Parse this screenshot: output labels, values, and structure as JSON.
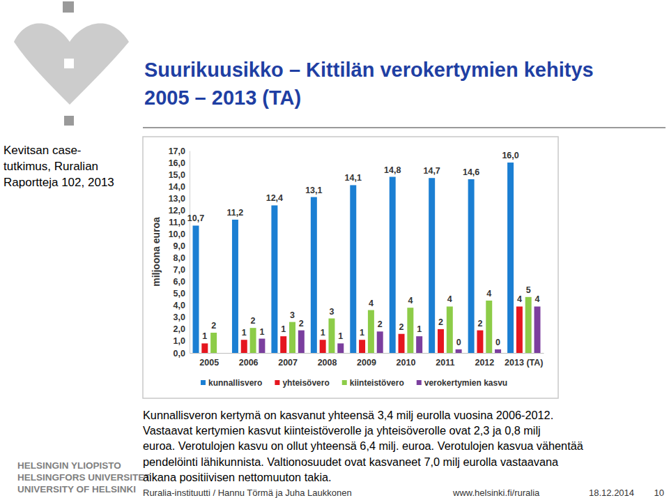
{
  "chart_data": {
    "type": "bar",
    "ylabel": "miljoona euroa",
    "categories": [
      "2005",
      "2006",
      "2007",
      "2008",
      "2009",
      "2010",
      "2011",
      "2012",
      "2013 (TA)"
    ],
    "series": [
      {
        "name": "kunnallisvero",
        "color": "#1b7fd3",
        "values": [
          10.7,
          11.2,
          12.4,
          13.1,
          14.1,
          14.8,
          14.7,
          14.6,
          16.0
        ],
        "value_labels": [
          "10,7",
          "11,2",
          "12,4",
          "13,1",
          "14,1",
          "14,8",
          "14,7",
          "14,6",
          "16,0"
        ]
      },
      {
        "name": "yhteisövero",
        "color": "#e5161f",
        "values": [
          0.8,
          1.1,
          1.4,
          1.1,
          1.1,
          1.6,
          2.0,
          1.9,
          3.9
        ],
        "value_labels": [
          "1",
          "1",
          "1",
          "1",
          "1",
          "2",
          "2",
          "2",
          "4"
        ]
      },
      {
        "name": "kiinteistövero",
        "color": "#8dcc48",
        "values": [
          1.7,
          2.1,
          2.6,
          2.9,
          3.6,
          3.8,
          3.9,
          4.4,
          4.7
        ],
        "value_labels": [
          "2",
          "2",
          "3",
          "3",
          "4",
          "4",
          "4",
          "4",
          "5"
        ]
      },
      {
        "name": "verokertymien kasvu",
        "color": "#7b3f9e",
        "values": [
          null,
          1.2,
          1.9,
          0.8,
          1.8,
          1.4,
          0.3,
          0.3,
          3.9
        ],
        "value_labels": [
          null,
          "1",
          "2",
          "1",
          "2",
          "1",
          "0",
          "0",
          "4"
        ]
      }
    ],
    "ylim": [
      0,
      17
    ],
    "yticks": [
      {
        "value": 0,
        "label": "0,0"
      },
      {
        "value": 1,
        "label": "1,0"
      },
      {
        "value": 2,
        "label": "2,0"
      },
      {
        "value": 3,
        "label": "3,0"
      },
      {
        "value": 4,
        "label": "4,0"
      },
      {
        "value": 5,
        "label": "5,0"
      },
      {
        "value": 6,
        "label": "6,0"
      },
      {
        "value": 7,
        "label": "7,0"
      },
      {
        "value": 8,
        "label": "8,0"
      },
      {
        "value": 9,
        "label": "9,0"
      },
      {
        "value": 10,
        "label": "10,0"
      },
      {
        "value": 11,
        "label": "11,0"
      },
      {
        "value": 12,
        "label": "12,0"
      },
      {
        "value": 13,
        "label": "13,0"
      },
      {
        "value": 14,
        "label": "14,0"
      },
      {
        "value": 15,
        "label": "15,0"
      },
      {
        "value": 16,
        "label": "16,0"
      },
      {
        "value": 17,
        "label": "17,0"
      }
    ],
    "grid": false,
    "legend": "bottom",
    "data_labels": true
  },
  "slide": {
    "title_lines": [
      "Suurikuusikko – Kittilän verokertymien kehitys",
      "2005 – 2013 (TA)"
    ],
    "side_note": [
      "Kevitsan case-",
      "tutkimus, Ruralian",
      "Raportteja 102, 2013"
    ],
    "university": [
      "HELSINGIN YLIOPISTO",
      "HELSINGFORS UNIVERSITET",
      "UNIVERSITY OF HELSINKI"
    ],
    "body": [
      "Kunnallisveron kertymä on kasvanut yhteensä 3,4 milj eurolla vuosina 2006-2012.",
      "Vastaavat kertymien kasvut kiinteistöverolle ja yhteisöverolle ovat 2,3 ja 0,8 milj",
      "euroa. Verotulojen kasvu on ollut yhteensä 6,4 milj. euroa.  Verotulojen kasvua vähentää",
      "pendelöinti lähikunnista. Valtionosuudet ovat kasvaneet 7,0 milj eurolla vastaavana",
      "aikana positiivisen nettomuuton takia."
    ],
    "footer": {
      "authors": "Ruralia-instituutti / Hannu Törmä ja Juha Laukkonen",
      "url": "www.helsinki.fi/ruralia",
      "date": "18.12.2014",
      "page": "10"
    }
  }
}
